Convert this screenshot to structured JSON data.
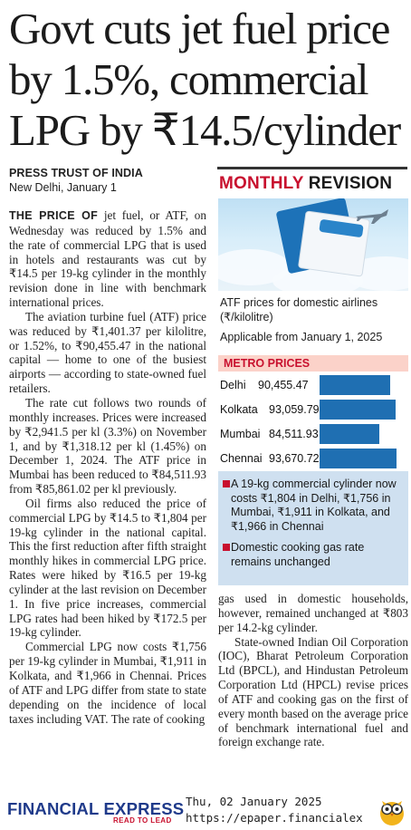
{
  "headline": "Govt cuts jet fuel price by 1.5%, commercial LPG by ₹14.5/cylinder",
  "byline": {
    "agency": "PRESS TRUST OF INDIA",
    "dateline": "New Delhi, January 1"
  },
  "article_left": {
    "lead": "THE PRICE OF",
    "p1": " jet fuel, or ATF, on Wednesday was reduced by 1.5% and the rate of commercial LPG that is used in hotels and restaurants was cut by ₹14.5 per 19-kg cylinder in the monthly revision done in line with benchmark international prices.",
    "p2": "The aviation turbine fuel (ATF) price was reduced by ₹1,401.37 per kilolitre, or 1.52%, to ₹90,455.47 in the national capital — home to one of the busiest airports — according to state-owned fuel retailers.",
    "p3": "The rate cut follows two rounds of monthly increases. Prices were increased by ₹2,941.5 per kl (3.3%) on November 1, and by ₹1,318.12 per kl (1.45%) on December 1, 2024. The ATF price in Mumbai has been reduced to ₹84,511.93 from ₹85,861.02 per kl previously.",
    "p4": "Oil firms also reduced the price of commercial LPG by ₹14.5 to ₹1,804 per 19-kg cylinder in the national capital. This the first reduction after fifth straight monthly hikes in commercial LPG price. Rates were hiked by ₹16.5 per 19-kg cylinder at the last revision on December 1. In five price increases, commercial LPG rates had been hiked by ₹172.5 per 19-kg cylinder.",
    "p5": "Commercial LPG now costs ₹1,756 per 19-kg cylinder in Mumbai, ₹1,911 in Kolkata, and ₹1,966 in Chennai. Prices of ATF and LPG differ from state to state depending on the incidence of local taxes including VAT. The rate of cooking"
  },
  "panel": {
    "title_red": "MONTHLY",
    "title_dark": "REVISION",
    "image_icon": "airline-tickets-image",
    "caption": "ATF prices for domestic airlines (₹/kilolitre)",
    "applicable": "Applicable from January 1, 2025",
    "metro_title": "METRO PRICES",
    "notes": [
      "A 19-kg commercial cylinder now costs ₹1,804 in Delhi, ₹1,756 in Mumbai, ₹1,911 in Kolkata, and ₹1,966 in Chennai",
      "Domestic cooking gas rate remains unchanged"
    ]
  },
  "chart_data": {
    "type": "bar",
    "orientation": "horizontal",
    "title": "METRO PRICES",
    "categories": [
      "Delhi",
      "Kolkata",
      "Mumbai",
      "Chennai"
    ],
    "values": [
      90455.47,
      93059.79,
      84511.93,
      93670.72
    ],
    "value_labels": [
      "90,455.47",
      "93,059.79",
      "84,511.93",
      "93,670.72"
    ],
    "bar_color": "#1f6fb2"
  },
  "article_right": {
    "p1": "gas used in domestic households, however, remained unchanged at ₹803 per 14.2-kg cylinder.",
    "p2": "State-owned Indian Oil Corporation (IOC), Bharat Petroleum Corporation Ltd (BPCL), and Hindustan Petroleum Corporation Ltd (HPCL) revise prices of ATF and cooking gas on the first of every month based on the average price of benchmark international fuel and foreign exchange rate."
  },
  "footer": {
    "logo": "FINANCIAL EXPRESS",
    "tagline": "READ TO LEAD",
    "date": "Thu, 02 January 2025",
    "url": "https://epaper.financialex",
    "mascot_icon": "owl-icon"
  },
  "colors": {
    "accent_red": "#c8102e",
    "bar_blue": "#1f6fb2",
    "note_bg": "#cfe0f0",
    "metro_bg": "#fbd2c9",
    "brand_blue": "#1f3a8a"
  }
}
